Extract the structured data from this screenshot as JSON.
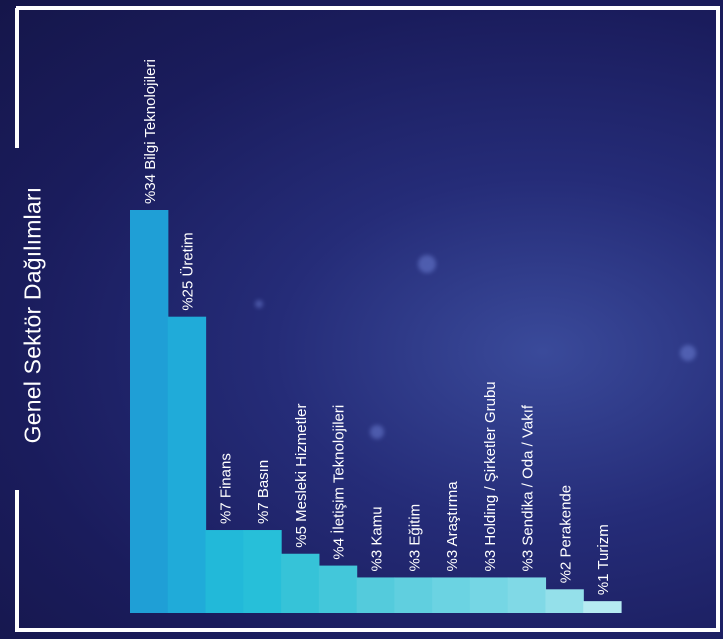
{
  "colors": {
    "frame": "#ffffff",
    "bars": [
      "#1f9fd6",
      "#20abd9",
      "#22b9d9",
      "#27bfd9",
      "#36c3d8",
      "#43c7da",
      "#54cbdc",
      "#60cfdf",
      "#6bd3e2",
      "#75d6e4",
      "#80d9e6",
      "#94e0ea",
      "#b6ebf2"
    ]
  },
  "chart_data": {
    "type": "bar",
    "title": "Genel Sektör Dağılımları",
    "categories": [
      "Bilgi Teknolojileri",
      "Üretim",
      "Finans",
      "Basın",
      "Mesleki Hizmetler",
      "İletişim Teknolojileri",
      "Kamu",
      "Eğitim",
      "Araştırma",
      "Holding / Şirketler Grubu",
      "Sendika / Oda / Vakıf",
      "Perakende",
      "Turizm"
    ],
    "values": [
      34,
      25,
      7,
      7,
      5,
      4,
      3,
      3,
      3,
      3,
      3,
      2,
      1
    ],
    "labels": [
      "%34 Bilgi Teknolojileri",
      "%25 Üretim",
      "%7 Finans",
      "%7 Basın",
      "%5 Mesleki Hizmetler",
      "%4 İletişim Teknolojileri",
      "%3 Kamu",
      "%3 Eğitim",
      "%3 Araştırma",
      "%3 Holding / Şirketler Grubu",
      "%3 Sendika / Oda / Vakıf",
      "%2 Perakende",
      "%1 Turizm"
    ],
    "ylim": [
      0,
      34
    ],
    "grid": false,
    "legend": "none"
  }
}
